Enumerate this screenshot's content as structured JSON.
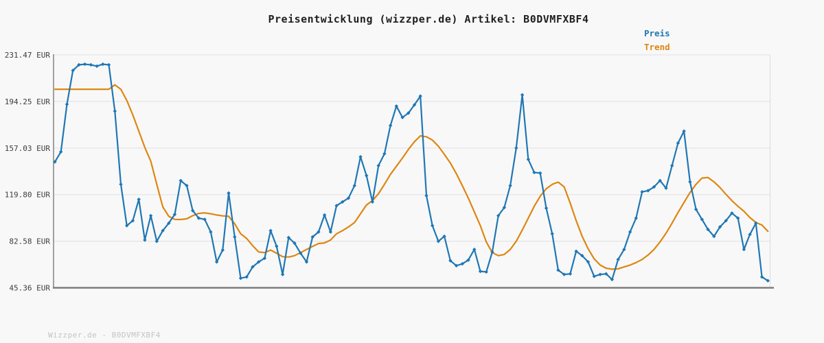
{
  "title": "Preisentwicklung (wizzper.de) Artikel: B0DVMFXBF4",
  "legend": {
    "preis_label": "Preis",
    "trend_label": "Trend"
  },
  "watermark": "Wizzper.de - B0DVMFXBF4",
  "colors": {
    "preis": "#1f77b4",
    "trend": "#de860f",
    "grid": "#e4e4e4",
    "axis_bottom": "#7d7d7d",
    "axis_left": "#8a8a8a",
    "axis_right": "#dcdcdc",
    "background": "#f8f8f8",
    "tick_text": "#3c3c3c",
    "title_text": "#1f1f1f",
    "watermark_text": "#c3c3c3"
  },
  "chart_data": {
    "type": "line",
    "title": "Preisentwicklung (wizzper.de) Artikel: B0DVMFXBF4",
    "xlabel": "",
    "ylabel": "EUR",
    "ylim": [
      45.36,
      231.47
    ],
    "grid": "horizontal",
    "legend_position": "top-right",
    "y_ticks": [
      {
        "value": 231.47,
        "label": "231.47 EUR"
      },
      {
        "value": 194.25,
        "label": "194.25 EUR"
      },
      {
        "value": 157.03,
        "label": "157.03 EUR"
      },
      {
        "value": 119.8,
        "label": "119.80 EUR"
      },
      {
        "value": 82.58,
        "label": "82.58 EUR"
      },
      {
        "value": 45.36,
        "label": "45.36 EUR"
      }
    ],
    "series": [
      {
        "name": "Trend",
        "color": "#de860f",
        "marker": "none",
        "values": [
          204,
          204,
          204,
          204,
          204,
          204,
          204,
          204,
          204,
          204,
          207.5,
          204,
          195,
          183.5,
          170.5,
          157.5,
          146.5,
          128,
          110,
          102.5,
          100,
          99.9,
          100.5,
          103,
          104.8,
          105.2,
          104.5,
          103.5,
          102.8,
          102.5,
          96.5,
          88.5,
          84.8,
          79,
          74,
          73.5,
          75.5,
          73,
          70.2,
          69.9,
          71,
          73.5,
          76,
          78.4,
          80.7,
          81.2,
          83.5,
          88.5,
          91,
          94,
          97.5,
          104.5,
          111.5,
          115,
          120.5,
          128,
          136,
          142.5,
          149,
          156,
          162,
          166.8,
          166,
          163.4,
          158.5,
          152,
          145,
          136.5,
          127,
          117,
          106,
          95,
          82,
          73.5,
          71,
          72,
          76,
          82.5,
          91.5,
          101,
          110.5,
          118.5,
          124.5,
          128,
          129.8,
          126,
          113,
          99,
          86.5,
          76.5,
          68.5,
          63.5,
          61,
          60.2,
          60.5,
          62,
          63.5,
          65.5,
          68,
          71.5,
          76,
          82,
          89,
          97,
          105.5,
          113.5,
          121.5,
          128,
          133,
          133.5,
          130,
          125.5,
          120,
          115,
          110.5,
          106.5,
          101.5,
          97.5,
          95.5,
          90.5
        ]
      },
      {
        "name": "Preis",
        "color": "#1f77b4",
        "marker": "diamond",
        "values": [
          146,
          154,
          192,
          219,
          223.5,
          224,
          223.5,
          222.5,
          224,
          223.5,
          186.5,
          128,
          95,
          99,
          116,
          83.5,
          103,
          82.5,
          91,
          97,
          104,
          131,
          127,
          107,
          101,
          100,
          90,
          66,
          75.5,
          121,
          86,
          53,
          54,
          62,
          66,
          69,
          91,
          78.5,
          56,
          85.5,
          81,
          73,
          66,
          86,
          90,
          103.5,
          90,
          111,
          114,
          117,
          127,
          150,
          135,
          114,
          143,
          152.5,
          175,
          190.5,
          181.5,
          185,
          191.5,
          198.5,
          119,
          95,
          82.5,
          86.5,
          67,
          63,
          64.5,
          67.5,
          76,
          58.5,
          58,
          74,
          103,
          109.5,
          127,
          157,
          199.5,
          148,
          137.5,
          137,
          109,
          88.5,
          59.5,
          56,
          56.5,
          74.5,
          71,
          66,
          54.5,
          56,
          56.5,
          52,
          68,
          76,
          90,
          101,
          122,
          123,
          126,
          131,
          125,
          143,
          161,
          170.5,
          130,
          108,
          100,
          92,
          86.5,
          94,
          99,
          105,
          101,
          76,
          88,
          97,
          54,
          51
        ]
      }
    ]
  }
}
